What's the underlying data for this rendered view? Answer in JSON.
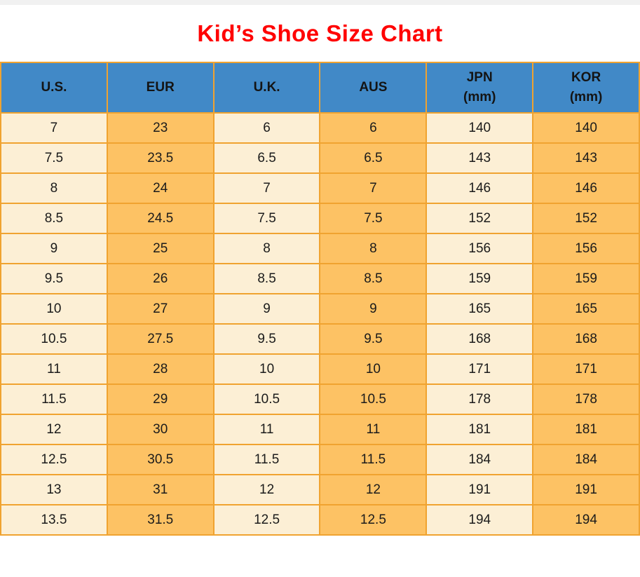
{
  "title": "Kid’s Shoe Size Chart",
  "colors": {
    "header_bg": "#4189C7",
    "row_cream": "#FCEFD5",
    "row_orange": "#FDC264",
    "grid": "#F0A330",
    "title_red": "#FF0000",
    "top_strip": "#F1F1F1",
    "text": "#1B1B1B"
  },
  "chart_data": {
    "type": "table",
    "title": "Kid’s Shoe Size Chart",
    "columns": [
      {
        "id": "us",
        "lines": [
          "U.S."
        ]
      },
      {
        "id": "eur",
        "lines": [
          "EUR"
        ]
      },
      {
        "id": "uk",
        "lines": [
          "U.K."
        ]
      },
      {
        "id": "aus",
        "lines": [
          "AUS"
        ]
      },
      {
        "id": "jpn",
        "lines": [
          "JPN",
          "(mm)"
        ]
      },
      {
        "id": "kor",
        "lines": [
          "KOR",
          "(mm)"
        ]
      }
    ],
    "rows": [
      [
        "7",
        "23",
        "6",
        "6",
        "140",
        "140"
      ],
      [
        "7.5",
        "23.5",
        "6.5",
        "6.5",
        "143",
        "143"
      ],
      [
        "8",
        "24",
        "7",
        "7",
        "146",
        "146"
      ],
      [
        "8.5",
        "24.5",
        "7.5",
        "7.5",
        "152",
        "152"
      ],
      [
        "9",
        "25",
        "8",
        "8",
        "156",
        "156"
      ],
      [
        "9.5",
        "26",
        "8.5",
        "8.5",
        "159",
        "159"
      ],
      [
        "10",
        "27",
        "9",
        "9",
        "165",
        "165"
      ],
      [
        "10.5",
        "27.5",
        "9.5",
        "9.5",
        "168",
        "168"
      ],
      [
        "11",
        "28",
        "10",
        "10",
        "171",
        "171"
      ],
      [
        "11.5",
        "29",
        "10.5",
        "10.5",
        "178",
        "178"
      ],
      [
        "12",
        "30",
        "11",
        "11",
        "181",
        "181"
      ],
      [
        "12.5",
        "30.5",
        "11.5",
        "11.5",
        "184",
        "184"
      ],
      [
        "13",
        "31",
        "12",
        "12",
        "191",
        "191"
      ],
      [
        "13.5",
        "31.5",
        "12.5",
        "12.5",
        "194",
        "194"
      ]
    ]
  }
}
